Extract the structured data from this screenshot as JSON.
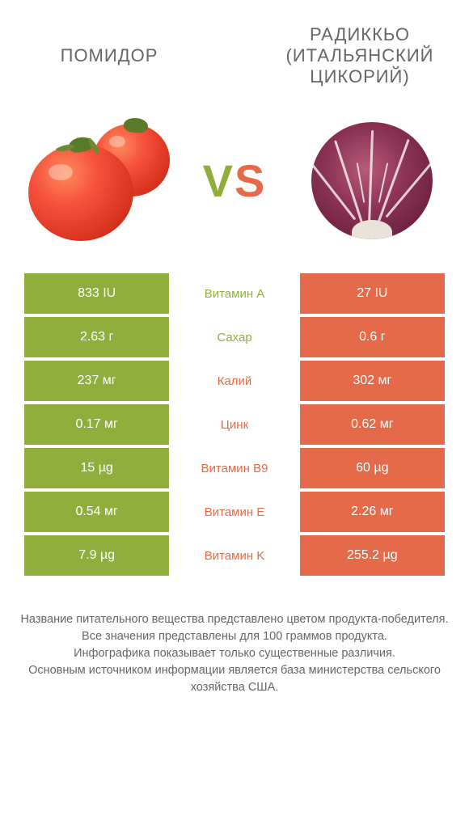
{
  "colors": {
    "left_product": "#8fae3c",
    "right_product": "#e46a4a",
    "text_gray": "#666666",
    "background": "#ffffff"
  },
  "header": {
    "left_title": "ПОМИДОР",
    "right_title": "РАДИККЬО (ИТАЛЬЯНСКИЙ ЦИКОРИЙ)"
  },
  "vs_label": "VS",
  "rows": [
    {
      "nutrient": "Витамин A",
      "left": "833 IU",
      "right": "27 IU",
      "winner": "left"
    },
    {
      "nutrient": "Сахар",
      "left": "2.63 г",
      "right": "0.6 г",
      "winner": "left"
    },
    {
      "nutrient": "Калий",
      "left": "237 мг",
      "right": "302 мг",
      "winner": "right"
    },
    {
      "nutrient": "Цинк",
      "left": "0.17 мг",
      "right": "0.62 мг",
      "winner": "right"
    },
    {
      "nutrient": "Витамин B9",
      "left": "15 µg",
      "right": "60 µg",
      "winner": "right"
    },
    {
      "nutrient": "Витамин E",
      "left": "0.54 мг",
      "right": "2.26 мг",
      "winner": "right"
    },
    {
      "nutrient": "Витамин K",
      "left": "7.9 µg",
      "right": "255.2 µg",
      "winner": "right"
    }
  ],
  "footer": {
    "line1": "Название питательного вещества представлено цветом продукта-победителя.",
    "line2": "Все значения представлены для 100 граммов продукта.",
    "line3": "Инфографика показывает только существенные различия.",
    "line4": "Основным источником информации является база министерства сельского хозяйства США."
  }
}
